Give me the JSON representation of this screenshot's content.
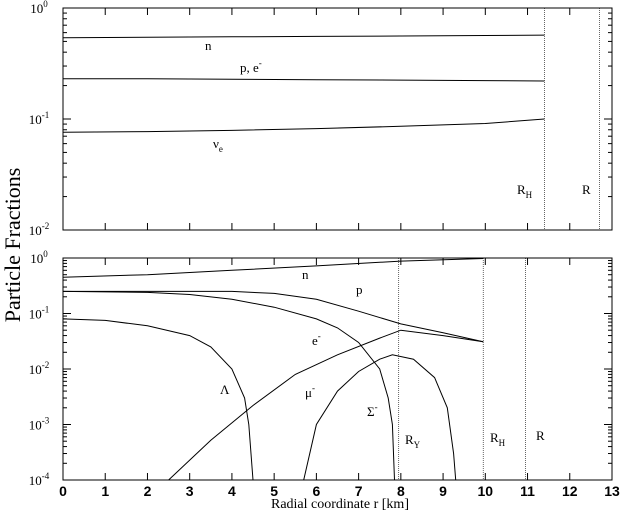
{
  "chart_data": [
    {
      "type": "line",
      "ylabel": "Particle Fractions",
      "log_y": true,
      "xlim": [
        0,
        13
      ],
      "ylim": [
        0.01,
        1
      ],
      "yticks": [
        {
          "value": 1,
          "label": "10^0"
        },
        {
          "value": 0.1,
          "label": "10^-1"
        },
        {
          "value": 0.01,
          "label": "10^-2"
        }
      ],
      "series": [
        {
          "name": "n",
          "color": "#000000",
          "x": [
            0,
            2,
            4,
            6,
            8,
            10,
            11.4
          ],
          "values": [
            0.54,
            0.545,
            0.55,
            0.555,
            0.56,
            0.565,
            0.57
          ]
        },
        {
          "name": "p, e^-",
          "color": "#000000",
          "x": [
            0,
            2,
            4,
            6,
            8,
            10,
            11.4
          ],
          "values": [
            0.23,
            0.23,
            0.228,
            0.226,
            0.224,
            0.222,
            0.22
          ]
        },
        {
          "name": "ν_e",
          "color": "#000000",
          "x": [
            0,
            2,
            4,
            6,
            8,
            10,
            11.4
          ],
          "values": [
            0.076,
            0.077,
            0.079,
            0.082,
            0.086,
            0.091,
            0.1
          ]
        }
      ],
      "vlines": [
        11.4,
        12.7
      ],
      "annotations": [
        "R_H",
        "R"
      ]
    },
    {
      "type": "line",
      "xlabel": "Radial coordinate r [km]",
      "log_y": true,
      "xlim": [
        0,
        13
      ],
      "ylim": [
        0.0001,
        1
      ],
      "xticks": [
        0,
        1,
        2,
        3,
        4,
        5,
        6,
        7,
        8,
        9,
        10,
        11,
        12,
        13
      ],
      "yticks": [
        {
          "value": 1,
          "label": "10^0"
        },
        {
          "value": 0.1,
          "label": "10^-1"
        },
        {
          "value": 0.01,
          "label": "10^-2"
        },
        {
          "value": 0.001,
          "label": "10^-3"
        },
        {
          "value": 0.0001,
          "label": "10^-4"
        }
      ],
      "series": [
        {
          "name": "n",
          "color": "#000000",
          "x": [
            0,
            2,
            4,
            6,
            8,
            9.95
          ],
          "values": [
            0.45,
            0.5,
            0.6,
            0.72,
            0.88,
            0.98
          ]
        },
        {
          "name": "p",
          "color": "#000000",
          "x": [
            0,
            2,
            4,
            5,
            6,
            7,
            8,
            9,
            9.95
          ],
          "values": [
            0.25,
            0.25,
            0.25,
            0.23,
            0.18,
            0.11,
            0.065,
            0.045,
            0.031
          ]
        },
        {
          "name": "e^-",
          "color": "#000000",
          "x": [
            2.5,
            3.5,
            4.5,
            5.5,
            6.5,
            7.5,
            8,
            9,
            9.95
          ],
          "values": [
            0.0001,
            0.00052,
            0.0022,
            0.008,
            0.018,
            0.036,
            0.05,
            0.04,
            0.031
          ]
        },
        {
          "name": "Λ",
          "color": "#000000",
          "x": [
            0,
            1,
            2,
            3,
            3.5,
            4,
            4.3,
            4.4,
            4.5
          ],
          "values": [
            0.08,
            0.075,
            0.06,
            0.04,
            0.025,
            0.01,
            0.003,
            0.001,
            0.0001
          ]
        },
        {
          "name": "μ^-",
          "color": "#000000",
          "x": [
            5.7,
            6,
            6.5,
            7,
            7.5,
            7.8,
            8.3,
            8.8,
            9.1,
            9.25,
            9.3
          ],
          "values": [
            0.0001,
            0.001,
            0.004,
            0.009,
            0.015,
            0.018,
            0.015,
            0.007,
            0.002,
            0.0003,
            0.0001
          ]
        },
        {
          "name": "Σ^-",
          "color": "#000000",
          "x": [
            0,
            2,
            3,
            4,
            5,
            6,
            6.5,
            7,
            7.5,
            7.7,
            7.8,
            7.85
          ],
          "values": [
            0.25,
            0.24,
            0.22,
            0.18,
            0.13,
            0.08,
            0.055,
            0.03,
            0.01,
            0.003,
            0.001,
            0.0001
          ]
        }
      ],
      "vlines": [
        7.95,
        9.95,
        10.95
      ],
      "annotations": [
        "R_Y",
        "R_H",
        "R"
      ]
    }
  ]
}
